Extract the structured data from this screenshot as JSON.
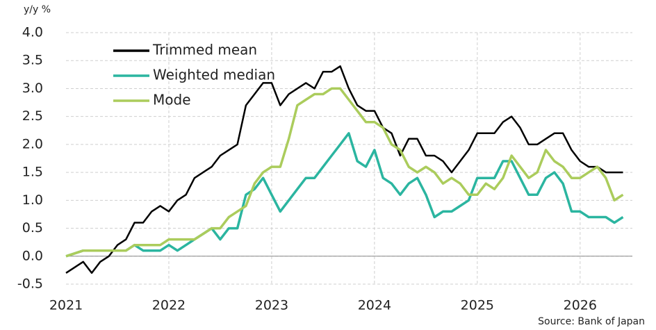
{
  "chart_data": {
    "type": "line",
    "y_axis_label": "y/y %",
    "source": "Source: Bank of Japan",
    "categories": [
      "2021",
      null,
      null,
      null,
      null,
      null,
      null,
      null,
      null,
      null,
      null,
      null,
      "2022",
      null,
      null,
      null,
      null,
      null,
      null,
      null,
      null,
      null,
      null,
      null,
      "2023",
      null,
      null,
      null,
      null,
      null,
      null,
      null,
      null,
      null,
      null,
      null,
      "2024",
      null,
      null,
      null,
      null,
      null,
      null,
      null,
      null,
      null,
      null,
      null,
      "2025",
      null,
      null,
      null,
      null,
      null,
      null,
      null,
      null,
      null,
      null,
      null,
      "2026",
      null,
      null,
      null,
      null,
      null
    ],
    "series": [
      {
        "name": "Trimmed mean",
        "color": "#000000",
        "values": [
          -0.3,
          -0.2,
          -0.1,
          -0.3,
          -0.1,
          0.0,
          0.2,
          0.3,
          0.6,
          0.6,
          0.8,
          0.9,
          0.8,
          1.0,
          1.1,
          1.4,
          1.5,
          1.6,
          1.8,
          1.9,
          2.0,
          2.7,
          2.9,
          3.1,
          3.1,
          2.7,
          2.9,
          3.0,
          3.1,
          3.0,
          3.3,
          3.3,
          3.4,
          3.0,
          2.7,
          2.6,
          2.6,
          2.3,
          2.2,
          1.8,
          2.1,
          2.1,
          1.8,
          1.8,
          1.7,
          1.5,
          1.7,
          1.9,
          2.2,
          2.2,
          2.2,
          2.4,
          2.5,
          2.3,
          2.0,
          2.0,
          2.1,
          2.2,
          2.2,
          1.9,
          1.7,
          1.6,
          1.6,
          1.5,
          1.5,
          1.5
        ]
      },
      {
        "name": "Weighted median",
        "color": "#2bb5a0",
        "values": [
          0.0,
          0.05,
          0.1,
          0.1,
          0.1,
          0.1,
          0.1,
          0.1,
          0.2,
          0.1,
          0.1,
          0.1,
          0.2,
          0.1,
          0.2,
          0.3,
          0.4,
          0.5,
          0.3,
          0.5,
          0.5,
          1.1,
          1.2,
          1.4,
          1.1,
          0.8,
          1.0,
          1.2,
          1.4,
          1.4,
          1.6,
          1.8,
          2.0,
          2.2,
          1.7,
          1.6,
          1.9,
          1.4,
          1.3,
          1.1,
          1.3,
          1.4,
          1.1,
          0.7,
          0.8,
          0.8,
          0.9,
          1.0,
          1.4,
          1.4,
          1.4,
          1.7,
          1.7,
          1.4,
          1.1,
          1.1,
          1.4,
          1.5,
          1.3,
          0.8,
          0.8,
          0.7,
          0.7,
          0.7,
          0.6,
          0.7
        ]
      },
      {
        "name": "Mode",
        "color": "#abcc5c",
        "values": [
          0.0,
          0.05,
          0.1,
          0.1,
          0.1,
          0.1,
          0.1,
          0.1,
          0.2,
          0.2,
          0.2,
          0.2,
          0.3,
          0.3,
          0.3,
          0.3,
          0.4,
          0.5,
          0.5,
          0.7,
          0.8,
          0.9,
          1.3,
          1.5,
          1.6,
          1.6,
          2.1,
          2.7,
          2.8,
          2.9,
          2.9,
          3.0,
          3.0,
          2.8,
          2.6,
          2.4,
          2.4,
          2.3,
          2.0,
          1.9,
          1.6,
          1.5,
          1.6,
          1.5,
          1.3,
          1.4,
          1.3,
          1.1,
          1.1,
          1.3,
          1.2,
          1.4,
          1.8,
          1.6,
          1.4,
          1.5,
          1.9,
          1.7,
          1.6,
          1.4,
          1.4,
          1.5,
          1.6,
          1.4,
          1.0,
          1.1
        ]
      }
    ],
    "ylim": [
      -0.5,
      4.0
    ],
    "yticks": [
      {
        "value": 4.0,
        "label": "4.0"
      },
      {
        "value": 3.5,
        "label": "3.5"
      },
      {
        "value": 3.0,
        "label": "3.0"
      },
      {
        "value": 2.5,
        "label": "2.5"
      },
      {
        "value": 2.0,
        "label": "2.0"
      },
      {
        "value": 1.5,
        "label": "1.5"
      },
      {
        "value": 1.0,
        "label": "1.0"
      },
      {
        "value": 0.5,
        "label": "0.5"
      },
      {
        "value": 0.0,
        "label": "0.0"
      },
      {
        "value": -0.5,
        "label": "-0.5"
      }
    ],
    "grid": true,
    "legend": "upper left"
  }
}
